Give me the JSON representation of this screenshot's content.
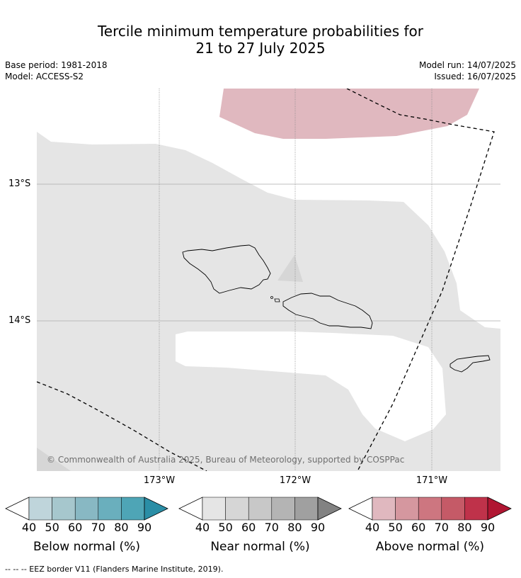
{
  "header": {
    "title_line1": "Tercile minimum temperature probabilities for",
    "title_line2": "21 to 27 July 2025",
    "base_period": "Base period: 1981-2018",
    "model": "Model: ACCESS-S2",
    "model_run": "Model run: 14/07/2025",
    "issued": "Issued: 16/07/2025"
  },
  "map": {
    "lon_labels": [
      "173°W",
      "172°W",
      "171°W"
    ],
    "lat_labels": [
      "13°S",
      "14°S"
    ],
    "copyright": "© Commonwealth of Australia 2025, Bureau of Meteorology, supported by COSPPac",
    "eez_legend": "-- -- -- EEZ border V11 (Flanders Marine Institute, 2019).",
    "colors": {
      "near_normal_40": "#e5e5e5",
      "near_normal_50": "#d6d6d6",
      "above_normal_40": "#e0b8bf",
      "land_outline": "#000000",
      "eez_line": "#000000"
    }
  },
  "colorbars": [
    {
      "label": "Below normal (%)",
      "ticks": [
        "40",
        "50",
        "60",
        "70",
        "80",
        "90"
      ],
      "colors": [
        "#ffffff",
        "#bfd5db",
        "#a6c7cd",
        "#88b8c3",
        "#6aafbd",
        "#4ea5b6",
        "#2a8ea6"
      ]
    },
    {
      "label": "Near normal (%)",
      "ticks": [
        "40",
        "50",
        "60",
        "70",
        "80",
        "90"
      ],
      "colors": [
        "#ffffff",
        "#e5e5e5",
        "#d6d6d6",
        "#c8c8c8",
        "#b4b4b4",
        "#a0a0a0",
        "#828282"
      ]
    },
    {
      "label": "Above normal (%)",
      "ticks": [
        "40",
        "50",
        "60",
        "70",
        "80",
        "90"
      ],
      "colors": [
        "#ffffff",
        "#e0b8bf",
        "#d5979f",
        "#cd7680",
        "#c55a67",
        "#bf324a",
        "#b01632"
      ]
    }
  ]
}
